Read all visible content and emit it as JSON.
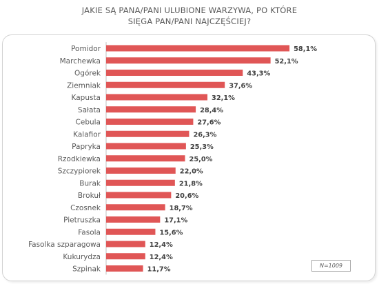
{
  "title_lines": [
    "JAKIE SĄ PANA/PANI ULUBIONE WARZYWA, PO KTÓRE",
    "SIĘGA PAN/PANI NAJCZĘŚCIEJ?"
  ],
  "note": "N=1009",
  "chart_data": {
    "type": "bar",
    "orientation": "horizontal",
    "title": "JAKIE SĄ PANA/PANI ULUBIONE WARZYWA, PO KTÓRE SIĘGA PAN/PANI NAJCZĘŚCIEJ?",
    "categories": [
      "Pomidor",
      "Marchewka",
      "Ogórek",
      "Ziemniak",
      "Kapusta",
      "Sałata",
      "Cebula",
      "Kalafior",
      "Papryka",
      "Rzodkiewka",
      "Szczypiorek",
      "Burak",
      "Brokuł",
      "Czosnek",
      "Pietruszka",
      "Fasola",
      "Fasolka szparagowa",
      "Kukurydza",
      "Szpinak"
    ],
    "values": [
      58.1,
      52.1,
      43.3,
      37.6,
      32.1,
      28.4,
      27.6,
      26.3,
      25.3,
      25.0,
      22.0,
      21.8,
      20.6,
      18.7,
      17.1,
      15.6,
      12.4,
      12.4,
      11.7
    ],
    "value_labels": [
      "58,1%",
      "52,1%",
      "43,3%",
      "37,6%",
      "32,1%",
      "28,4%",
      "27,6%",
      "26,3%",
      "25,3%",
      "25,0%",
      "22,0%",
      "21,8%",
      "20,6%",
      "18,7%",
      "17,1%",
      "15,6%",
      "12,4%",
      "12,4%",
      "11,7%"
    ],
    "unit": "%",
    "bar_color": "#e05656"
  }
}
